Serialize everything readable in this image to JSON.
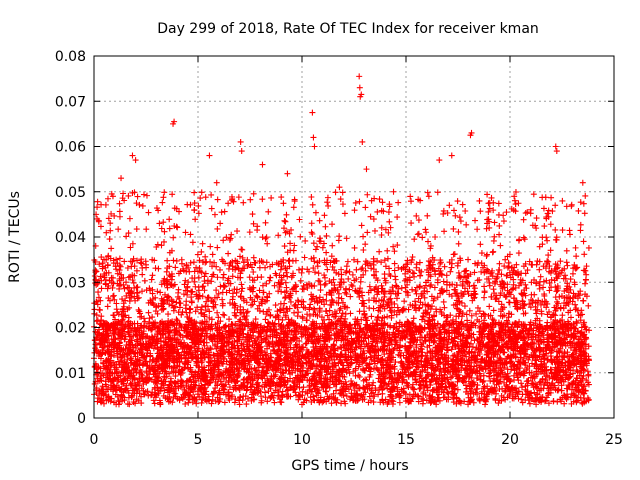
{
  "chart_data": {
    "type": "scatter",
    "title": "Day 299 of 2018, Rate Of TEC Index for receiver kman",
    "xlabel": "GPS time / hours",
    "ylabel": "ROTI / TECUs",
    "xlim": [
      0,
      25
    ],
    "ylim": [
      0,
      0.08
    ],
    "x_ticks": [
      "0",
      "5",
      "10",
      "15",
      "20",
      "25"
    ],
    "y_ticks": [
      "0",
      "0.01",
      "0.02",
      "0.03",
      "0.04",
      "0.05",
      "0.06",
      "0.07",
      "0.08"
    ],
    "grid": true,
    "marker": "plus",
    "color": "#ff0000",
    "data_extent_x": [
      0,
      23.8
    ],
    "series_points": [
      [
        3.8,
        0.065
      ],
      [
        3.85,
        0.0655
      ],
      [
        5.55,
        0.058
      ],
      [
        7.05,
        0.061
      ],
      [
        7.1,
        0.059
      ],
      [
        10.5,
        0.0675
      ],
      [
        10.55,
        0.062
      ],
      [
        10.6,
        0.06
      ],
      [
        12.75,
        0.0755
      ],
      [
        12.78,
        0.073
      ],
      [
        12.8,
        0.071
      ],
      [
        12.85,
        0.0715
      ],
      [
        12.9,
        0.061
      ],
      [
        17.2,
        0.058
      ],
      [
        18.1,
        0.0625
      ],
      [
        18.15,
        0.063
      ],
      [
        22.2,
        0.06
      ],
      [
        22.25,
        0.059
      ],
      [
        1.85,
        0.058
      ],
      [
        2.0,
        0.057
      ],
      [
        8.1,
        0.056
      ],
      [
        13.1,
        0.055
      ],
      [
        16.6,
        0.057
      ],
      [
        23.5,
        0.052
      ],
      [
        0.1,
        0.045
      ],
      [
        0.15,
        0.044
      ],
      [
        1.3,
        0.053
      ],
      [
        5.9,
        0.052
      ],
      [
        9.3,
        0.054
      ],
      [
        11.8,
        0.051
      ],
      [
        14.4,
        0.05
      ],
      [
        20.2,
        0.049
      ],
      [
        21.0,
        0.046
      ],
      [
        16.1,
        0.049
      ],
      [
        18.9,
        0.043
      ],
      [
        19.0,
        0.042
      ],
      [
        10.8,
        0.032
      ],
      [
        4.4,
        0.041
      ],
      [
        23.1,
        0.03
      ],
      [
        18.8,
        0.003
      ],
      [
        15.2,
        0.004
      ],
      [
        10.0,
        0.003
      ],
      [
        7.0,
        0.003
      ],
      [
        1.2,
        0.003
      ]
    ],
    "density_bands": [
      {
        "x": [
          0,
          23.8
        ],
        "y_min": 0.003,
        "y_max": 0.021,
        "density": "dense"
      },
      {
        "x": [
          0,
          23.8
        ],
        "y_min": 0.021,
        "y_max": 0.035,
        "density": "medium"
      },
      {
        "x": [
          0,
          23.8
        ],
        "y_min": 0.035,
        "y_max": 0.05,
        "density": "sparse"
      }
    ]
  }
}
